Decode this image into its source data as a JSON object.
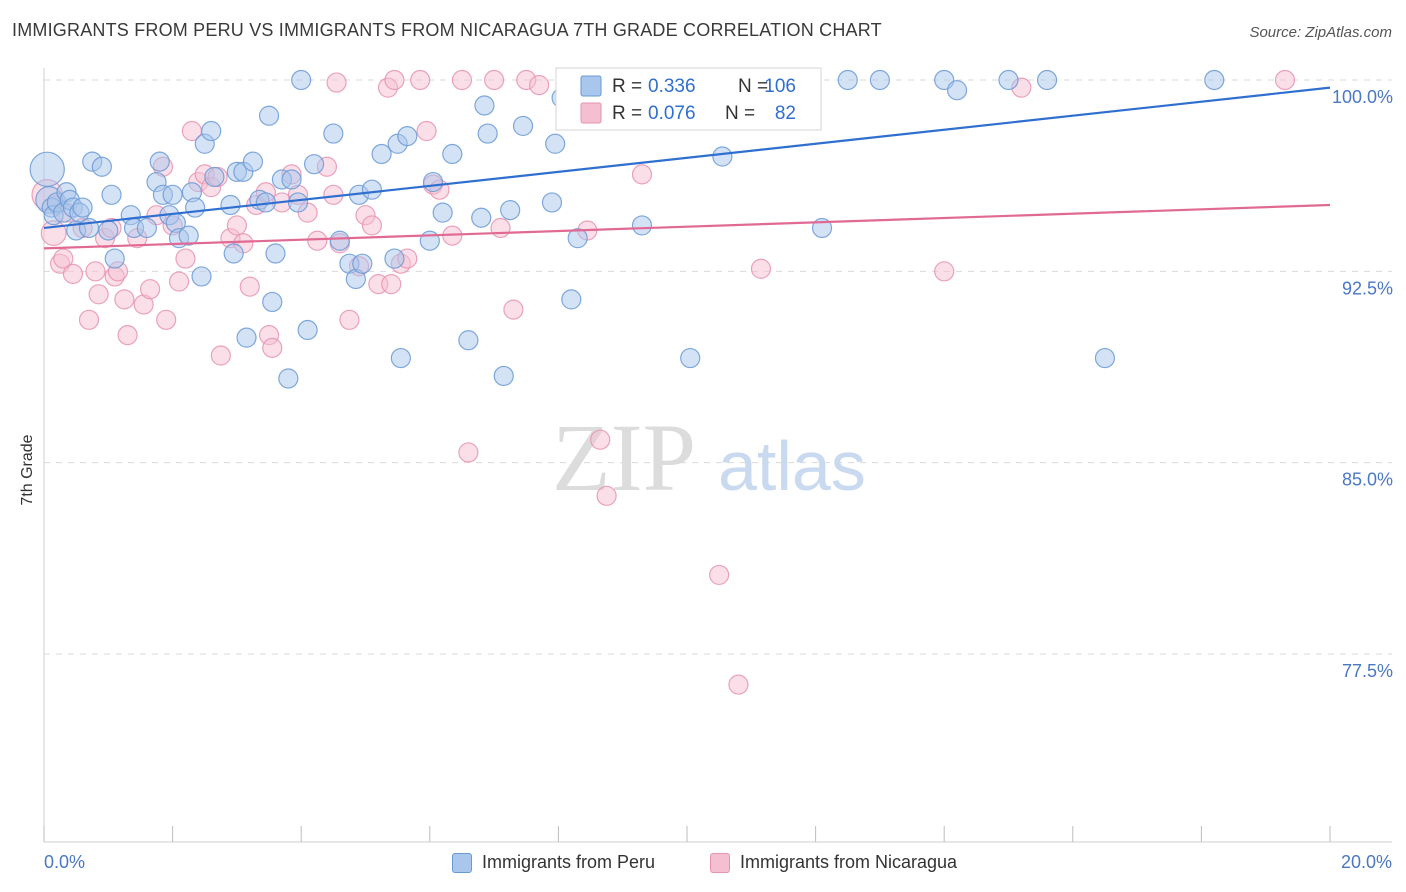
{
  "title": "IMMIGRANTS FROM PERU VS IMMIGRANTS FROM NICARAGUA 7TH GRADE CORRELATION CHART",
  "source": "Source: ZipAtlas.com",
  "watermark": {
    "zip": "ZIP",
    "atlas": "atlas"
  },
  "colors": {
    "peru_fill": "#a9c6ec",
    "peru_stroke": "#6a9ad6",
    "peru_line": "#2f6fcf",
    "nic_fill": "#f5bfd2",
    "nic_stroke": "#e793b1",
    "nic_line": "#e06a93",
    "axis_label": "#4a78c2",
    "grid": "#d9d9d9"
  },
  "legend": {
    "rows": [
      {
        "r_label": "R =",
        "r_value": "0.336",
        "n_label": "N =",
        "n_value": "106"
      },
      {
        "r_label": "R =",
        "r_value": "0.076",
        "n_label": "N =",
        "n_value": "82"
      }
    ]
  },
  "bottom_legend": {
    "peru": "Immigrants from Peru",
    "nicaragua": "Immigrants from Nicaragua"
  },
  "chart_data": {
    "type": "scatter",
    "title": "IMMIGRANTS FROM PERU VS IMMIGRANTS FROM NICARAGUA 7TH GRADE CORRELATION CHART",
    "xlabel": "",
    "ylabel": "7th Grade",
    "xlim": [
      0,
      20
    ],
    "ylim": [
      70.0,
      101.5
    ],
    "x_tick_labels": [
      "0.0%",
      "20.0%"
    ],
    "y_ticks": [
      100.0,
      92.5,
      85.0,
      77.5
    ],
    "y_tick_labels": [
      "100.0%",
      "92.5%",
      "85.0%",
      "77.5%"
    ],
    "grid": true,
    "legend_position": "top-center",
    "series": [
      {
        "name": "Immigrants from Peru",
        "r": 0.336,
        "n": 106,
        "trend": {
          "x": [
            0,
            20
          ],
          "y": [
            94.2,
            99.7
          ]
        },
        "points": [
          [
            0.05,
            96.5,
            1.8
          ],
          [
            0.08,
            95.3,
            1.4
          ],
          [
            0.12,
            95.0,
            1
          ],
          [
            0.15,
            94.7,
            1
          ],
          [
            0.2,
            95.2,
            1
          ],
          [
            0.3,
            94.8,
            1
          ],
          [
            0.35,
            95.6,
            1
          ],
          [
            0.4,
            95.3,
            1
          ],
          [
            0.45,
            95.0,
            1
          ],
          [
            0.5,
            94.1,
            1
          ],
          [
            0.55,
            94.8,
            1
          ],
          [
            0.6,
            95.0,
            1
          ],
          [
            0.7,
            94.2,
            1
          ],
          [
            0.75,
            96.8,
            1
          ],
          [
            0.9,
            96.6,
            1
          ],
          [
            1.0,
            94.1,
            1
          ],
          [
            1.05,
            95.5,
            1
          ],
          [
            1.1,
            93.0,
            1
          ],
          [
            1.35,
            94.7,
            1
          ],
          [
            1.4,
            94.2,
            1
          ],
          [
            1.6,
            94.2,
            1
          ],
          [
            1.75,
            96.0,
            1
          ],
          [
            1.8,
            96.8,
            1
          ],
          [
            1.85,
            95.5,
            1
          ],
          [
            1.95,
            94.7,
            1
          ],
          [
            2.0,
            95.5,
            1
          ],
          [
            2.05,
            94.4,
            1
          ],
          [
            2.1,
            93.8,
            1
          ],
          [
            2.25,
            93.9,
            1
          ],
          [
            2.3,
            95.6,
            1
          ],
          [
            2.35,
            95.0,
            1
          ],
          [
            2.45,
            92.3,
            1
          ],
          [
            2.5,
            97.5,
            1
          ],
          [
            2.6,
            98.0,
            1
          ],
          [
            2.65,
            96.2,
            1
          ],
          [
            2.9,
            95.1,
            1
          ],
          [
            2.95,
            93.2,
            1
          ],
          [
            3.0,
            96.4,
            1
          ],
          [
            3.1,
            96.4,
            1
          ],
          [
            3.15,
            89.9,
            1
          ],
          [
            3.25,
            96.8,
            1
          ],
          [
            3.35,
            95.3,
            1
          ],
          [
            3.45,
            95.2,
            1
          ],
          [
            3.5,
            98.6,
            1
          ],
          [
            3.55,
            91.3,
            1
          ],
          [
            3.6,
            93.2,
            1
          ],
          [
            3.7,
            96.1,
            1
          ],
          [
            3.8,
            88.3,
            1
          ],
          [
            3.85,
            96.1,
            1
          ],
          [
            3.95,
            95.2,
            1
          ],
          [
            4.0,
            100.0,
            1
          ],
          [
            4.1,
            90.2,
            1
          ],
          [
            4.2,
            96.7,
            1
          ],
          [
            4.5,
            97.9,
            1
          ],
          [
            4.6,
            93.7,
            1
          ],
          [
            4.75,
            92.8,
            1
          ],
          [
            4.85,
            92.2,
            1
          ],
          [
            4.9,
            95.5,
            1
          ],
          [
            4.95,
            92.8,
            1
          ],
          [
            5.1,
            95.7,
            1
          ],
          [
            5.25,
            97.1,
            1
          ],
          [
            5.45,
            93.0,
            1
          ],
          [
            5.5,
            97.5,
            1
          ],
          [
            5.55,
            89.1,
            1
          ],
          [
            5.65,
            97.8,
            1
          ],
          [
            6.0,
            93.7,
            1
          ],
          [
            6.05,
            96.0,
            1
          ],
          [
            6.2,
            94.8,
            1
          ],
          [
            6.35,
            97.1,
            1
          ],
          [
            6.6,
            89.8,
            1
          ],
          [
            6.8,
            94.6,
            1
          ],
          [
            6.85,
            99.0,
            1
          ],
          [
            6.9,
            97.9,
            1
          ],
          [
            7.15,
            88.4,
            1
          ],
          [
            7.25,
            94.9,
            1
          ],
          [
            7.45,
            98.2,
            1
          ],
          [
            7.9,
            95.2,
            1
          ],
          [
            7.95,
            97.5,
            1
          ],
          [
            8.05,
            99.3,
            1
          ],
          [
            8.15,
            99.9,
            1
          ],
          [
            8.2,
            91.4,
            1
          ],
          [
            8.3,
            93.8,
            1
          ],
          [
            8.5,
            99.8,
            1
          ],
          [
            8.6,
            98.8,
            1
          ],
          [
            9.0,
            100.0,
            1
          ],
          [
            9.2,
            99.3,
            1
          ],
          [
            9.3,
            94.3,
            1
          ],
          [
            9.6,
            99.3,
            1
          ],
          [
            10.05,
            89.1,
            1
          ],
          [
            10.2,
            98.5,
            1
          ],
          [
            10.3,
            98.5,
            1
          ],
          [
            10.55,
            97.0,
            1
          ],
          [
            11.0,
            100.0,
            1
          ],
          [
            11.05,
            99.5,
            1
          ],
          [
            11.2,
            99.8,
            1
          ],
          [
            11.6,
            100.0,
            1
          ],
          [
            12.1,
            94.2,
            1
          ],
          [
            12.5,
            100.0,
            1
          ],
          [
            13.0,
            100.0,
            1
          ],
          [
            14.0,
            100.0,
            1
          ],
          [
            14.2,
            99.6,
            1
          ],
          [
            15.0,
            100.0,
            1
          ],
          [
            15.6,
            100.0,
            1
          ],
          [
            16.5,
            89.1,
            1
          ],
          [
            18.2,
            100.0,
            1
          ],
          [
            10.3,
            99.9,
            1
          ]
        ]
      },
      {
        "name": "Immigrants from Nicaragua",
        "r": 0.076,
        "n": 82,
        "trend": {
          "x": [
            0,
            20
          ],
          "y": [
            93.4,
            95.1
          ]
        },
        "points": [
          [
            0.05,
            95.5,
            1.6
          ],
          [
            0.15,
            94.0,
            1.3
          ],
          [
            0.2,
            95.1,
            1
          ],
          [
            0.25,
            92.8,
            1
          ],
          [
            0.3,
            93.0,
            1
          ],
          [
            0.35,
            94.8,
            1
          ],
          [
            0.45,
            92.4,
            1
          ],
          [
            0.6,
            94.2,
            1
          ],
          [
            0.7,
            90.6,
            1
          ],
          [
            0.8,
            92.5,
            1
          ],
          [
            0.85,
            91.6,
            1
          ],
          [
            0.95,
            93.8,
            1
          ],
          [
            1.05,
            94.2,
            1
          ],
          [
            1.1,
            92.3,
            1
          ],
          [
            1.15,
            92.5,
            1
          ],
          [
            1.25,
            91.4,
            1
          ],
          [
            1.3,
            90.0,
            1
          ],
          [
            1.45,
            93.8,
            1
          ],
          [
            1.55,
            91.2,
            1
          ],
          [
            1.65,
            91.8,
            1
          ],
          [
            1.75,
            94.7,
            1
          ],
          [
            1.85,
            96.6,
            1
          ],
          [
            1.9,
            90.6,
            1
          ],
          [
            2.0,
            94.3,
            1
          ],
          [
            2.1,
            92.1,
            1
          ],
          [
            2.2,
            93.0,
            1
          ],
          [
            2.3,
            98.0,
            1
          ],
          [
            2.4,
            96.0,
            1
          ],
          [
            2.5,
            96.3,
            1
          ],
          [
            2.6,
            95.8,
            1
          ],
          [
            2.7,
            96.2,
            1
          ],
          [
            2.75,
            89.2,
            1
          ],
          [
            2.9,
            93.8,
            1
          ],
          [
            3.0,
            94.3,
            1
          ],
          [
            3.1,
            93.6,
            1
          ],
          [
            3.2,
            91.9,
            1
          ],
          [
            3.3,
            95.1,
            1
          ],
          [
            3.45,
            95.6,
            1
          ],
          [
            3.5,
            90.0,
            1
          ],
          [
            3.55,
            89.5,
            1
          ],
          [
            3.7,
            95.2,
            1
          ],
          [
            3.85,
            96.3,
            1
          ],
          [
            3.95,
            95.5,
            1
          ],
          [
            4.1,
            94.8,
            1
          ],
          [
            4.25,
            93.7,
            1
          ],
          [
            4.4,
            96.6,
            1
          ],
          [
            4.5,
            95.5,
            1
          ],
          [
            4.6,
            93.6,
            1
          ],
          [
            4.75,
            90.6,
            1
          ],
          [
            4.9,
            92.7,
            1
          ],
          [
            5.0,
            94.7,
            1
          ],
          [
            5.1,
            94.3,
            1
          ],
          [
            5.2,
            92.0,
            1
          ],
          [
            5.35,
            99.7,
            1
          ],
          [
            5.45,
            100.0,
            1
          ],
          [
            5.55,
            92.8,
            1
          ],
          [
            5.65,
            93.0,
            1
          ],
          [
            5.85,
            100.0,
            1
          ],
          [
            5.95,
            98.0,
            1
          ],
          [
            6.05,
            95.9,
            1
          ],
          [
            6.15,
            95.7,
            1
          ],
          [
            6.35,
            93.9,
            1
          ],
          [
            6.5,
            100.0,
            1
          ],
          [
            6.6,
            85.4,
            1
          ],
          [
            7.0,
            100.0,
            1
          ],
          [
            7.1,
            94.2,
            1
          ],
          [
            7.3,
            91.0,
            1
          ],
          [
            7.5,
            100.0,
            1
          ],
          [
            7.7,
            99.8,
            1
          ],
          [
            8.2,
            100.0,
            1
          ],
          [
            8.45,
            94.1,
            1
          ],
          [
            8.65,
            85.9,
            1
          ],
          [
            8.75,
            83.7,
            1
          ],
          [
            9.3,
            96.3,
            1
          ],
          [
            10.5,
            80.6,
            1
          ],
          [
            10.8,
            76.3,
            1
          ],
          [
            11.15,
            92.6,
            1
          ],
          [
            14.0,
            92.5,
            1
          ],
          [
            15.2,
            99.7,
            1
          ],
          [
            19.3,
            100.0,
            1
          ],
          [
            5.4,
            92.0,
            1
          ],
          [
            4.55,
            99.9,
            1
          ]
        ]
      }
    ]
  }
}
